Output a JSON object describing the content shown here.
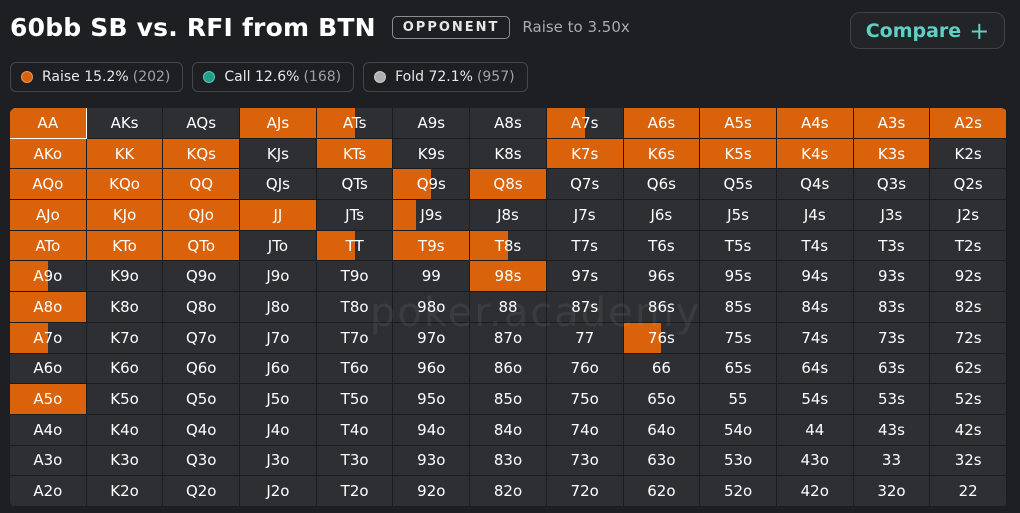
{
  "header": {
    "title": "60bb SB vs. RFI from BTN",
    "badge": "OPPONENT",
    "raise_to": "Raise to 3.50x",
    "compare_label": "Compare",
    "compare_plus": "+"
  },
  "legend": [
    {
      "label": "Raise 15.2%",
      "count": "(202)",
      "color": "#d9620a"
    },
    {
      "label": "Call 12.6%",
      "count": "(168)",
      "color": "#1f9e8a"
    },
    {
      "label": "Fold 72.1%",
      "count": "(957)",
      "color": "#b0b0b0"
    }
  ],
  "colors": {
    "raise": "#d9620a",
    "cell": "#2d2f33"
  },
  "watermark": "poker.academy",
  "grid": {
    "rows": [
      [
        "AA",
        "AKs",
        "AQs",
        "AJs",
        "ATs",
        "A9s",
        "A8s",
        "A7s",
        "A6s",
        "A5s",
        "A4s",
        "A3s",
        "A2s"
      ],
      [
        "AKo",
        "KK",
        "KQs",
        "KJs",
        "KTs",
        "K9s",
        "K8s",
        "K7s",
        "K6s",
        "K5s",
        "K4s",
        "K3s",
        "K2s"
      ],
      [
        "AQo",
        "KQo",
        "QQ",
        "QJs",
        "QTs",
        "Q9s",
        "Q8s",
        "Q7s",
        "Q6s",
        "Q5s",
        "Q4s",
        "Q3s",
        "Q2s"
      ],
      [
        "AJo",
        "KJo",
        "QJo",
        "JJ",
        "JTs",
        "J9s",
        "J8s",
        "J7s",
        "J6s",
        "J5s",
        "J4s",
        "J3s",
        "J2s"
      ],
      [
        "ATo",
        "KTo",
        "QTo",
        "JTo",
        "TT",
        "T9s",
        "T8s",
        "T7s",
        "T6s",
        "T5s",
        "T4s",
        "T3s",
        "T2s"
      ],
      [
        "A9o",
        "K9o",
        "Q9o",
        "J9o",
        "T9o",
        "99",
        "98s",
        "97s",
        "96s",
        "95s",
        "94s",
        "93s",
        "92s"
      ],
      [
        "A8o",
        "K8o",
        "Q8o",
        "J8o",
        "T8o",
        "98o",
        "88",
        "87s",
        "86s",
        "85s",
        "84s",
        "83s",
        "82s"
      ],
      [
        "A7o",
        "K7o",
        "Q7o",
        "J7o",
        "T7o",
        "97o",
        "87o",
        "77",
        "76s",
        "75s",
        "74s",
        "73s",
        "72s"
      ],
      [
        "A6o",
        "K6o",
        "Q6o",
        "J6o",
        "T6o",
        "96o",
        "86o",
        "76o",
        "66",
        "65s",
        "64s",
        "63s",
        "62s"
      ],
      [
        "A5o",
        "K5o",
        "Q5o",
        "J5o",
        "T5o",
        "95o",
        "85o",
        "75o",
        "65o",
        "55",
        "54s",
        "53s",
        "52s"
      ],
      [
        "A4o",
        "K4o",
        "Q4o",
        "J4o",
        "T4o",
        "94o",
        "84o",
        "74o",
        "64o",
        "54o",
        "44",
        "43s",
        "42s"
      ],
      [
        "A3o",
        "K3o",
        "Q3o",
        "J3o",
        "T3o",
        "93o",
        "83o",
        "73o",
        "63o",
        "53o",
        "43o",
        "33",
        "32s"
      ],
      [
        "A2o",
        "K2o",
        "Q2o",
        "J2o",
        "T2o",
        "92o",
        "82o",
        "72o",
        "62o",
        "52o",
        "42o",
        "32o",
        "22"
      ]
    ],
    "raise": [
      [
        1,
        0,
        0,
        1,
        0.5,
        0,
        0,
        0.5,
        1,
        1,
        1,
        1,
        1
      ],
      [
        1,
        1,
        1,
        0,
        1,
        0,
        0,
        1,
        1,
        1,
        1,
        1,
        0
      ],
      [
        1,
        1,
        1,
        0,
        0,
        0.5,
        1,
        0,
        0,
        0,
        0,
        0,
        0
      ],
      [
        1,
        1,
        1,
        1,
        0,
        0.3,
        0,
        0,
        0,
        0,
        0,
        0,
        0
      ],
      [
        1,
        1,
        1,
        0,
        0.5,
        1,
        0.5,
        0,
        0,
        0,
        0,
        0,
        0
      ],
      [
        0.5,
        0,
        0,
        0,
        0,
        0,
        1,
        0,
        0,
        0,
        0,
        0,
        0
      ],
      [
        1,
        0,
        0,
        0,
        0,
        0,
        0,
        0,
        0,
        0,
        0,
        0,
        0
      ],
      [
        0.5,
        0,
        0,
        0,
        0,
        0,
        0,
        0,
        0.5,
        0,
        0,
        0,
        0
      ],
      [
        0,
        0,
        0,
        0,
        0,
        0,
        0,
        0,
        0,
        0,
        0,
        0,
        0
      ],
      [
        1,
        0,
        0,
        0,
        0,
        0,
        0,
        0,
        0,
        0,
        0,
        0,
        0
      ],
      [
        0,
        0,
        0,
        0,
        0,
        0,
        0,
        0,
        0,
        0,
        0,
        0,
        0
      ],
      [
        0,
        0,
        0,
        0,
        0,
        0,
        0,
        0,
        0,
        0,
        0,
        0,
        0
      ],
      [
        0,
        0,
        0,
        0,
        0,
        0,
        0,
        0,
        0,
        0,
        0,
        0,
        0
      ]
    ],
    "selected": "AA"
  }
}
